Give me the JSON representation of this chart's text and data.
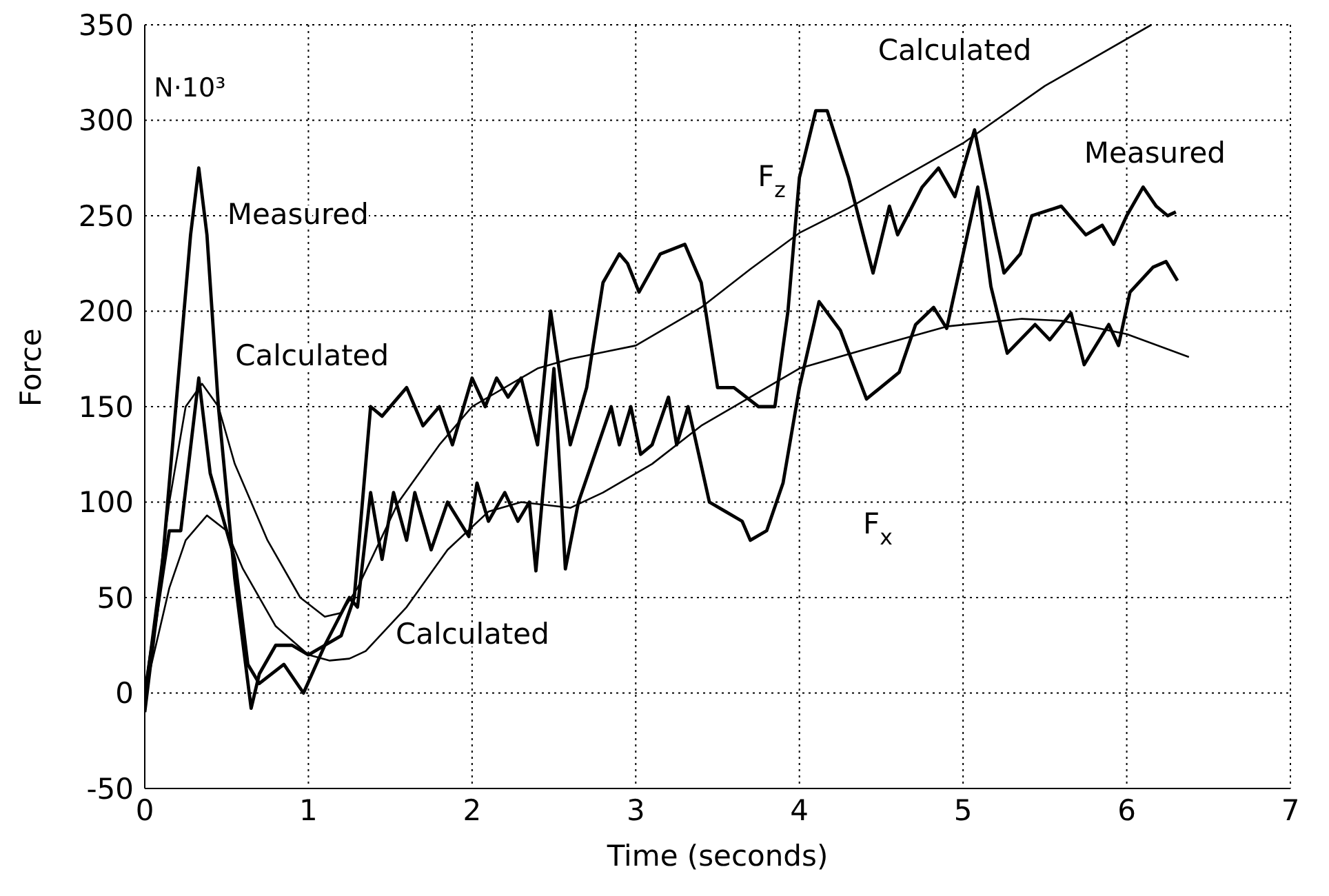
{
  "chart_data": {
    "type": "line",
    "xlabel": "Time (seconds)",
    "ylabel": "Force",
    "xlim": [
      0,
      7
    ],
    "xticks": [
      0,
      1,
      2,
      3,
      4,
      5,
      6,
      7
    ],
    "ylim": [
      -50,
      350
    ],
    "yticks": [
      -50,
      0,
      50,
      100,
      150,
      200,
      250,
      300,
      350
    ],
    "grid": true,
    "series": [
      {
        "color": "#000000",
        "x": [
          0,
          0.1,
          0.2,
          0.28,
          0.33,
          0.38,
          0.45,
          0.55,
          0.65,
          0.7,
          0.8,
          0.9,
          1.0,
          1.1,
          1.2,
          1.28,
          1.38,
          1.45,
          1.55,
          1.6,
          1.7,
          1.8,
          1.88,
          2.0,
          2.08,
          2.15,
          2.22,
          2.3,
          2.4,
          2.48,
          2.6,
          2.7,
          2.8,
          2.9,
          2.95,
          3.02,
          3.15,
          3.3,
          3.4,
          3.5,
          3.6,
          3.75,
          3.85,
          3.93,
          4.0,
          4.1,
          4.17,
          4.3,
          4.45,
          4.55,
          4.6,
          4.75,
          4.85,
          4.95,
          5.07,
          5.2,
          5.25,
          5.35,
          5.42,
          5.6,
          5.75,
          5.85,
          5.92,
          6.0,
          6.1,
          6.18,
          6.25,
          6.3
        ],
        "values": [
          -10,
          60,
          160,
          240,
          275,
          240,
          150,
          60,
          -8,
          10,
          25,
          25,
          20,
          25,
          30,
          50,
          150,
          145,
          155,
          160,
          140,
          150,
          130,
          165,
          150,
          165,
          155,
          165,
          130,
          200,
          130,
          160,
          215,
          230,
          225,
          210,
          230,
          235,
          215,
          160,
          160,
          150,
          150,
          200,
          270,
          305,
          305,
          270,
          220,
          255,
          240,
          265,
          275,
          260,
          295,
          240,
          220,
          230,
          250,
          255,
          240,
          245,
          235,
          250,
          265,
          255,
          250,
          252
        ]
      },
      {
        "color": "#000000",
        "x": [
          0,
          0.15,
          0.22,
          0.33,
          0.4,
          0.45,
          0.55,
          0.63,
          0.7,
          0.85,
          0.97,
          1.1,
          1.25,
          1.3,
          1.38,
          1.45,
          1.52,
          1.6,
          1.65,
          1.75,
          1.85,
          1.98,
          2.03,
          2.1,
          2.2,
          2.28,
          2.35,
          2.39,
          2.5,
          2.57,
          2.65,
          2.75,
          2.85,
          2.9,
          2.97,
          3.03,
          3.1,
          3.2,
          3.25,
          3.32,
          3.45,
          3.55,
          3.65,
          3.7,
          3.8,
          3.9,
          4.0,
          4.12,
          4.25,
          4.41,
          4.61,
          4.71,
          4.82,
          4.9,
          5.09,
          5.17,
          5.27,
          5.44,
          5.53,
          5.66,
          5.74,
          5.89,
          5.95,
          6.02,
          6.16,
          6.24,
          6.31
        ],
        "values": [
          0,
          85,
          85,
          165,
          115,
          100,
          70,
          15,
          5,
          15,
          0,
          25,
          50,
          45,
          105,
          70,
          105,
          80,
          105,
          75,
          100,
          82,
          110,
          90,
          105,
          90,
          100,
          64,
          170,
          65,
          100,
          125,
          150,
          130,
          150,
          125,
          130,
          155,
          130,
          150,
          100,
          95,
          90,
          80,
          85,
          110,
          160,
          205,
          190,
          154,
          168,
          193,
          202,
          191,
          265,
          213,
          178,
          193,
          185,
          199,
          172,
          193,
          182,
          210,
          223,
          226,
          216
        ]
      },
      {
        "color": "#000000",
        "x": [
          0,
          0.15,
          0.25,
          0.35,
          0.45,
          0.55,
          0.75,
          0.95,
          1.1,
          1.2,
          1.3,
          1.55,
          1.8,
          2.0,
          2.4,
          2.6,
          3.0,
          3.4,
          3.7,
          4.0,
          4.3,
          5.0,
          5.5,
          6.15
        ],
        "values": [
          0,
          100,
          150,
          162,
          150,
          120,
          80,
          50,
          40,
          42,
          55,
          100,
          130,
          150,
          170,
          175,
          182,
          202,
          222,
          241,
          254,
          288,
          318,
          350
        ]
      },
      {
        "color": "#000000",
        "x": [
          0,
          0.15,
          0.25,
          0.38,
          0.5,
          0.6,
          0.8,
          1.0,
          1.13,
          1.25,
          1.35,
          1.6,
          1.85,
          2.1,
          2.3,
          2.6,
          2.8,
          3.1,
          3.4,
          3.8,
          4.0,
          4.4,
          4.9,
          5.36,
          5.6,
          6.0,
          6.38
        ],
        "values": [
          0,
          55,
          80,
          93,
          85,
          65,
          35,
          20,
          17,
          18,
          22,
          45,
          75,
          95,
          100,
          97,
          105,
          120,
          140,
          160,
          170,
          180,
          192,
          196,
          195,
          188,
          176
        ]
      }
    ],
    "annotations": [
      "N·10³",
      "Measured",
      "Calculated",
      "Calculated",
      "Calculated",
      "Measured",
      "F$_{z}$",
      "F$_{x}$"
    ]
  }
}
